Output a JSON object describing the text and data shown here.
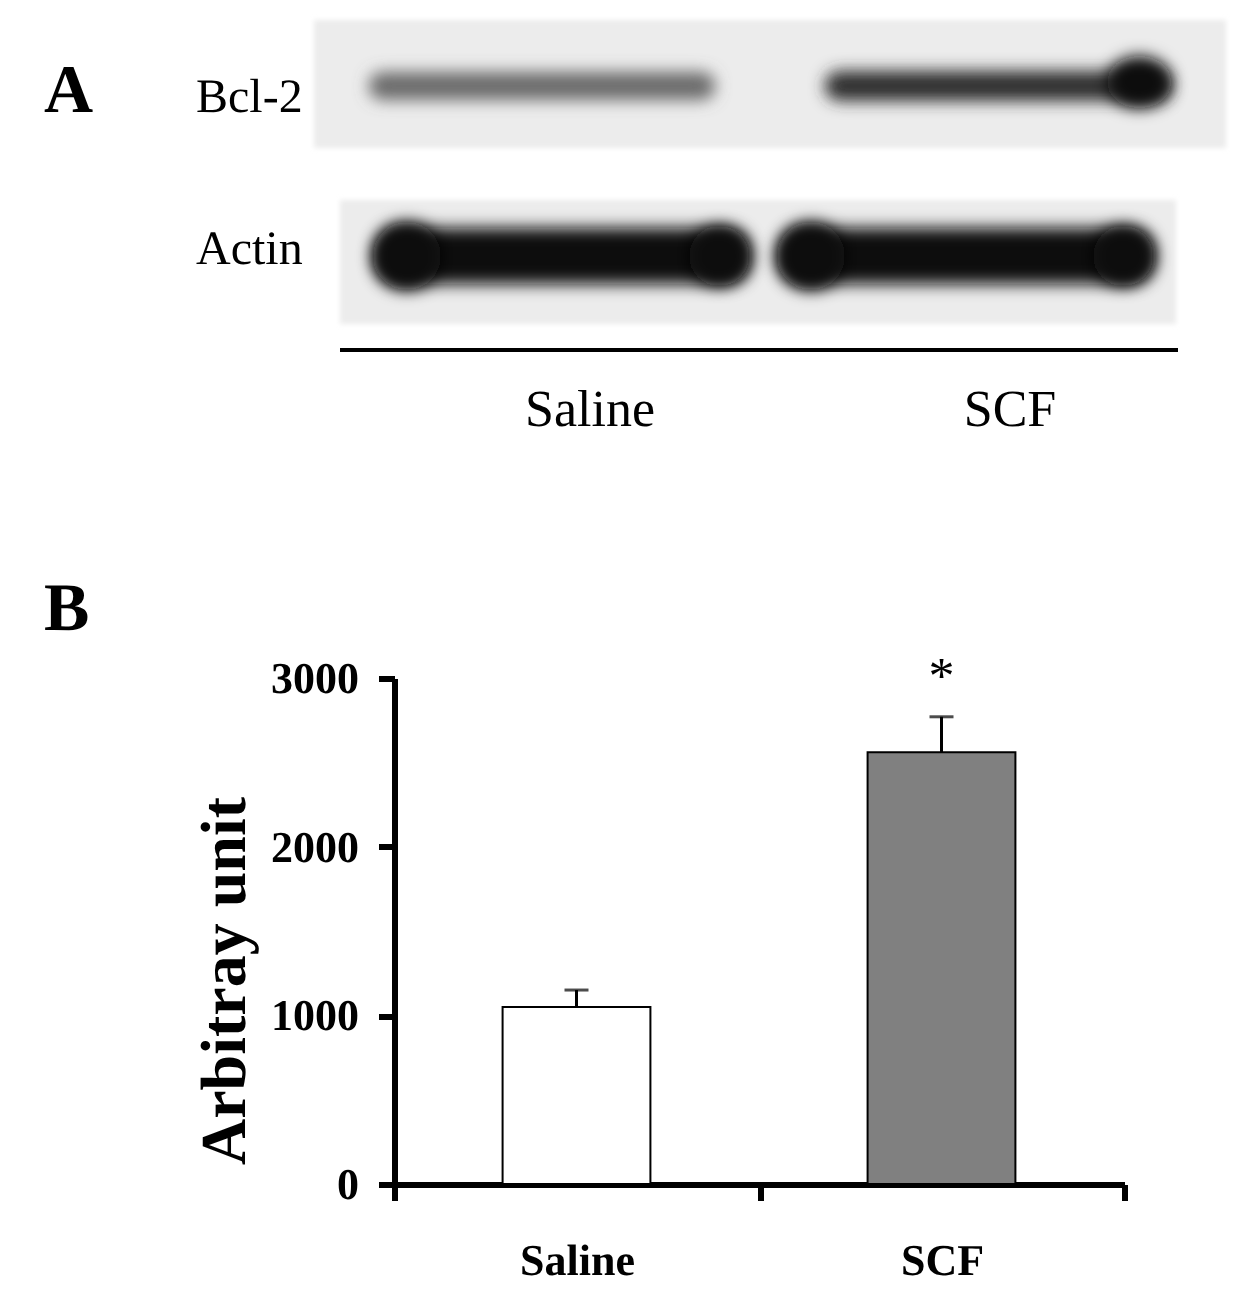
{
  "chart_data": [
    {
      "type": "other",
      "title": "A",
      "categories": [
        "Saline",
        "SCF"
      ],
      "annotations": [
        "Bcl-2",
        "Actin"
      ]
    },
    {
      "type": "bar",
      "title": "B",
      "ylabel": "Arbitray unit",
      "categories": [
        "Saline",
        "SCF"
      ],
      "values": [
        1050,
        2560
      ],
      "colors": [
        "#ffffff",
        "#808080"
      ],
      "errors": [
        [
          1050,
          1150
        ],
        [
          2560,
          2770
        ]
      ],
      "ylim": [
        0,
        3000
      ],
      "yticks": [
        0,
        1000,
        2000,
        3000
      ],
      "annotations": [
        "*"
      ]
    }
  ]
}
